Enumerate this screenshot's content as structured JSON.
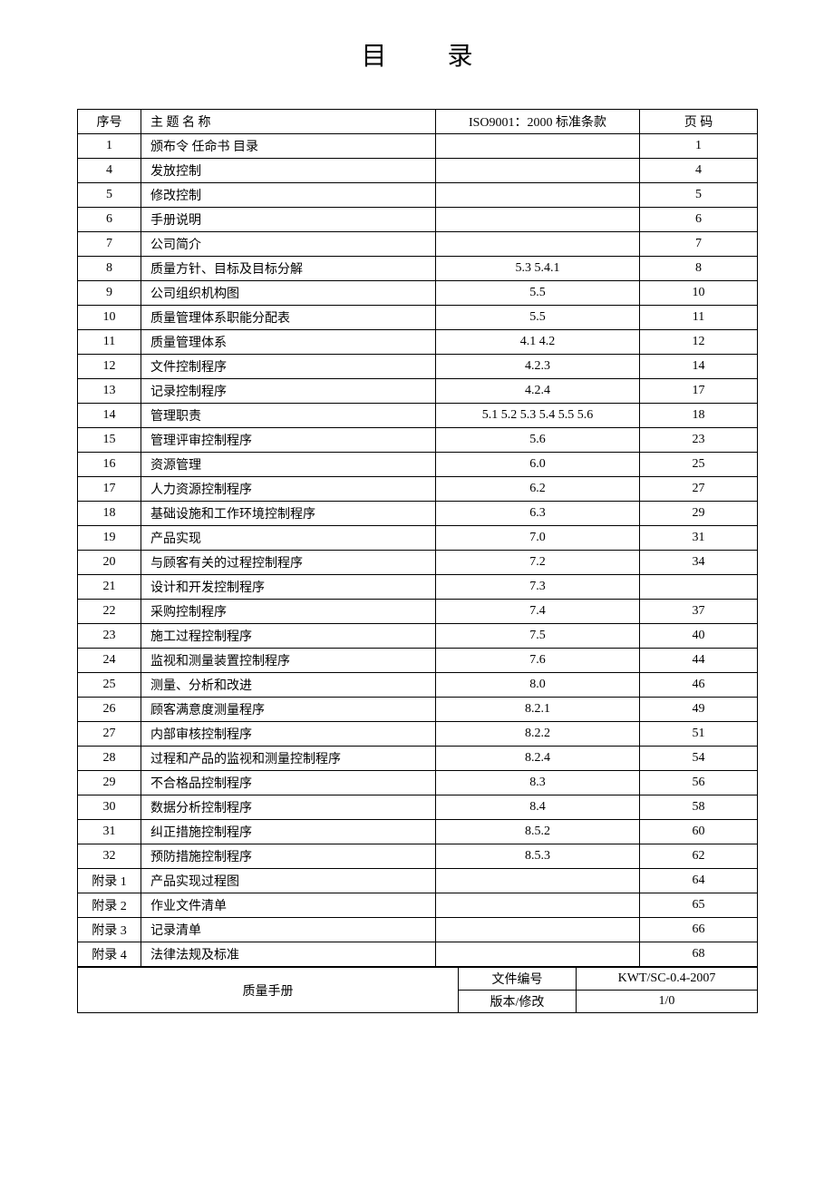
{
  "title": "目 录",
  "headers": {
    "seq": "序号",
    "subject": "主 题 名 称",
    "iso": "ISO9001：2000 标准条款",
    "page": "页  码"
  },
  "rows": [
    {
      "seq": "1",
      "subject": "颁布令 任命书 目录",
      "iso": "",
      "page": "1"
    },
    {
      "seq": "4",
      "subject": "发放控制",
      "iso": "",
      "page": "4"
    },
    {
      "seq": "5",
      "subject": "修改控制",
      "iso": "",
      "page": "5"
    },
    {
      "seq": "6",
      "subject": "手册说明",
      "iso": "",
      "page": "6"
    },
    {
      "seq": "7",
      "subject": "公司简介",
      "iso": "",
      "page": "7"
    },
    {
      "seq": "8",
      "subject": "质量方针、目标及目标分解",
      "iso": "5.3  5.4.1",
      "page": "8"
    },
    {
      "seq": "9",
      "subject": "公司组织机构图",
      "iso": "5.5",
      "page": "10"
    },
    {
      "seq": "10",
      "subject": "质量管理体系职能分配表",
      "iso": "5.5",
      "page": "11"
    },
    {
      "seq": "11",
      "subject": "质量管理体系",
      "iso": "4.1  4.2",
      "page": "12"
    },
    {
      "seq": "12",
      "subject": "文件控制程序",
      "iso": "4.2.3",
      "page": "14"
    },
    {
      "seq": "13",
      "subject": "记录控制程序",
      "iso": "4.2.4",
      "page": "17"
    },
    {
      "seq": "14",
      "subject": "管理职责",
      "iso": "5.1  5.2  5.3  5.4  5.5  5.6",
      "page": "18"
    },
    {
      "seq": "15",
      "subject": "管理评审控制程序",
      "iso": "5.6",
      "page": "23"
    },
    {
      "seq": "16",
      "subject": "资源管理",
      "iso": "6.0",
      "page": "25"
    },
    {
      "seq": "17",
      "subject": "人力资源控制程序",
      "iso": "6.2",
      "page": "27"
    },
    {
      "seq": "18",
      "subject": "基础设施和工作环境控制程序",
      "iso": "6.3",
      "page": "29"
    },
    {
      "seq": "19",
      "subject": "产品实现",
      "iso": "7.0",
      "page": "31"
    },
    {
      "seq": "20",
      "subject": "与顾客有关的过程控制程序",
      "iso": "7.2",
      "page": "34"
    },
    {
      "seq": "21",
      "subject": "设计和开发控制程序",
      "iso": "7.3",
      "page": ""
    },
    {
      "seq": "22",
      "subject": "采购控制程序",
      "iso": "7.4",
      "page": "37"
    },
    {
      "seq": "23",
      "subject": "施工过程控制程序",
      "iso": "7.5",
      "page": "40"
    },
    {
      "seq": "24",
      "subject": "监视和测量装置控制程序",
      "iso": "7.6",
      "page": "44"
    },
    {
      "seq": "25",
      "subject": "测量、分析和改进",
      "iso": "8.0",
      "page": "46"
    },
    {
      "seq": "26",
      "subject": "顾客满意度测量程序",
      "iso": "8.2.1",
      "page": "49"
    },
    {
      "seq": "27",
      "subject": "内部审核控制程序",
      "iso": "8.2.2",
      "page": "51"
    },
    {
      "seq": "28",
      "subject": "过程和产品的监视和测量控制程序",
      "iso": "8.2.4",
      "page": "54"
    },
    {
      "seq": "29",
      "subject": "不合格品控制程序",
      "iso": "8.3",
      "page": "56"
    },
    {
      "seq": "30",
      "subject": "数据分析控制程序",
      "iso": "8.4",
      "page": "58"
    },
    {
      "seq": "31",
      "subject": "纠正措施控制程序",
      "iso": "8.5.2",
      "page": "60"
    },
    {
      "seq": "32",
      "subject": "预防措施控制程序",
      "iso": "8.5.3",
      "page": "62"
    },
    {
      "seq": "附录 1",
      "subject": "产品实现过程图",
      "iso": "",
      "page": "64"
    },
    {
      "seq": "附录 2",
      "subject": "作业文件清单",
      "iso": "",
      "page": "65"
    },
    {
      "seq": "附录 3",
      "subject": "记录清单",
      "iso": "",
      "page": "66"
    },
    {
      "seq": "附录 4",
      "subject": "法律法规及标准",
      "iso": "",
      "page": "68"
    }
  ],
  "footer": {
    "title": "质量手册",
    "doc_no_label": "文件编号",
    "doc_no_value": "KWT/SC-0.4-2007",
    "version_label": "版本/修改",
    "version_value": "1/0"
  }
}
